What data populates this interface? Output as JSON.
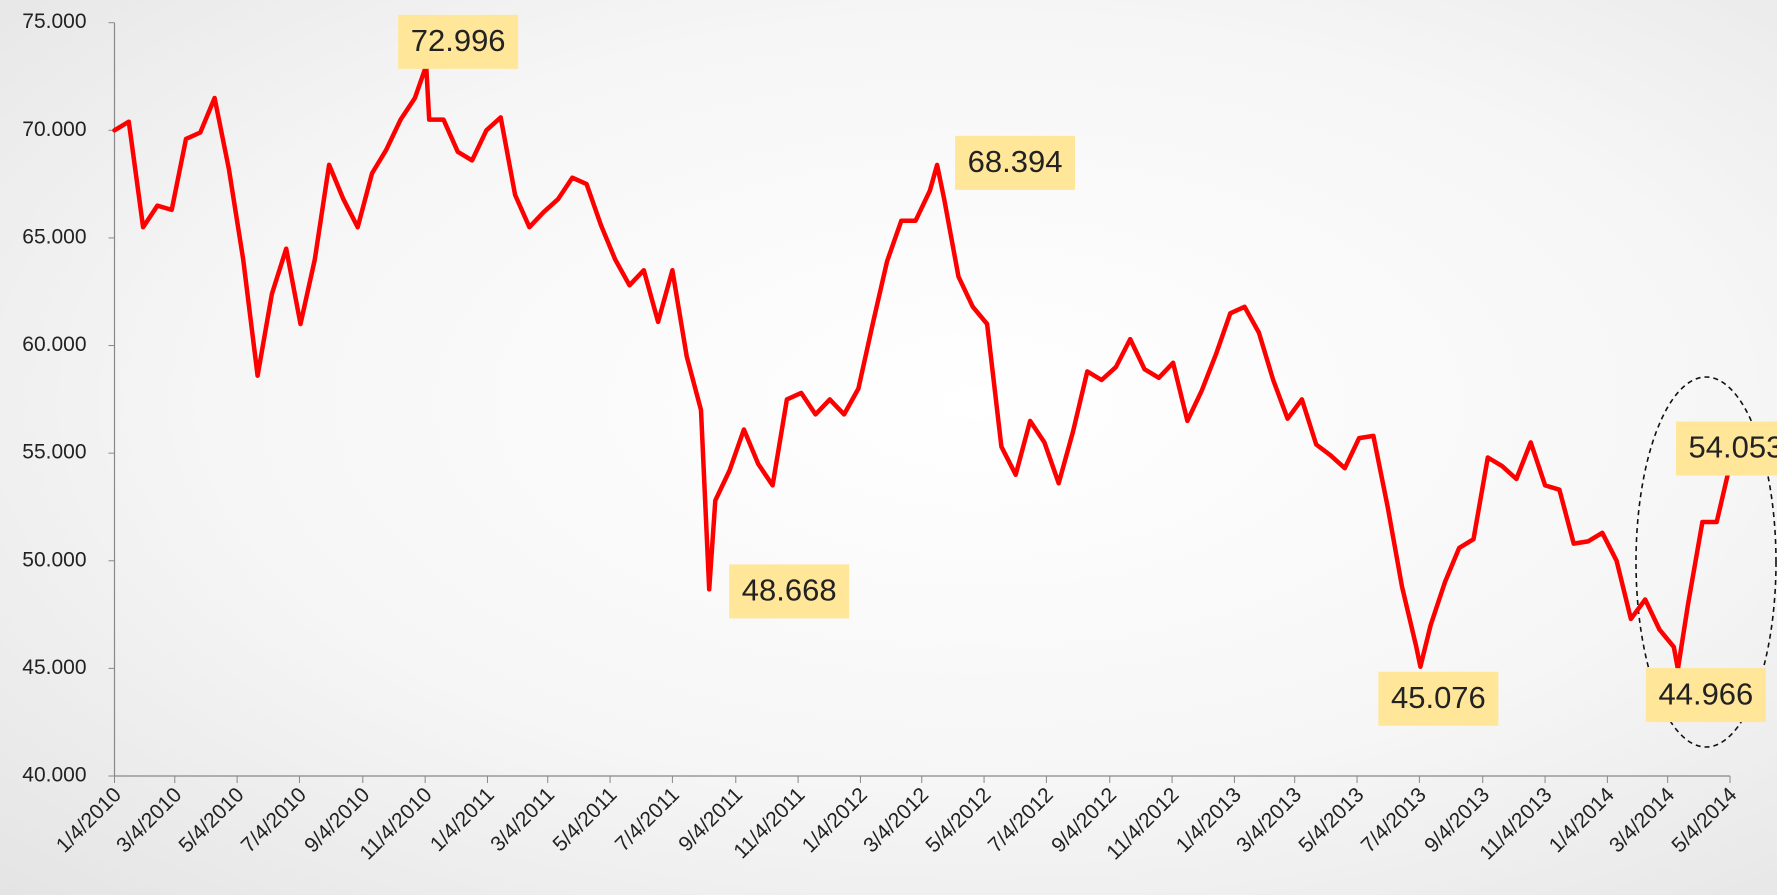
{
  "chart_data": {
    "type": "line",
    "color": "#ff0000",
    "x": [
      "1/4/2010",
      "1/18/2010",
      "2/1/2010",
      "2/15/2010",
      "3/1/2010",
      "3/15/2010",
      "3/29/2010",
      "4/12/2010",
      "4/26/2010",
      "5/10/2010",
      "5/24/2010",
      "6/7/2010",
      "6/21/2010",
      "7/5/2010",
      "7/19/2010",
      "8/2/2010",
      "8/16/2010",
      "8/30/2010",
      "9/13/2010",
      "9/27/2010",
      "10/11/2010",
      "10/25/2010",
      "11/5/2010",
      "11/8/2010",
      "11/22/2010",
      "12/6/2010",
      "12/20/2010",
      "1/3/2011",
      "1/17/2011",
      "1/31/2011",
      "2/14/2011",
      "2/28/2011",
      "3/14/2011",
      "3/28/2011",
      "4/11/2011",
      "4/25/2011",
      "5/9/2011",
      "5/23/2011",
      "6/6/2011",
      "6/20/2011",
      "7/4/2011",
      "7/18/2011",
      "8/1/2011",
      "8/9/2011",
      "8/15/2011",
      "8/29/2011",
      "9/12/2011",
      "9/26/2011",
      "10/10/2011",
      "10/24/2011",
      "11/7/2011",
      "11/21/2011",
      "12/5/2011",
      "12/19/2011",
      "1/2/2012",
      "1/16/2012",
      "1/30/2012",
      "2/13/2012",
      "2/27/2012",
      "3/12/2012",
      "3/19/2012",
      "3/26/2012",
      "4/9/2012",
      "4/23/2012",
      "5/7/2012",
      "5/21/2012",
      "6/4/2012",
      "6/18/2012",
      "7/2/2012",
      "7/16/2012",
      "7/30/2012",
      "8/13/2012",
      "8/27/2012",
      "9/10/2012",
      "9/24/2012",
      "10/8/2012",
      "10/22/2012",
      "11/5/2012",
      "11/19/2012",
      "12/3/2012",
      "12/17/2012",
      "12/31/2012",
      "1/14/2013",
      "1/28/2013",
      "2/11/2013",
      "2/25/2013",
      "3/11/2013",
      "3/25/2013",
      "4/8/2013",
      "4/22/2013",
      "5/6/2013",
      "5/20/2013",
      "6/3/2013",
      "6/17/2013",
      "7/1/2013",
      "7/5/2013",
      "7/15/2013",
      "7/29/2013",
      "8/12/2013",
      "8/26/2013",
      "9/9/2013",
      "9/23/2013",
      "10/7/2013",
      "10/21/2013",
      "11/4/2013",
      "11/18/2013",
      "12/2/2013",
      "12/16/2013",
      "12/30/2013",
      "1/13/2014",
      "1/27/2014",
      "2/10/2014",
      "2/24/2014",
      "3/10/2014",
      "3/14/2014",
      "3/24/2014",
      "4/7/2014",
      "4/21/2014",
      "5/2/2014"
    ],
    "values": [
      70.0,
      70.4,
      65.5,
      66.5,
      66.3,
      69.6,
      69.9,
      71.5,
      68.2,
      64.0,
      58.6,
      62.4,
      64.5,
      61.0,
      64.0,
      68.4,
      66.8,
      65.5,
      68.0,
      69.1,
      70.5,
      71.5,
      72.996,
      70.5,
      70.5,
      69.0,
      68.6,
      70.0,
      70.6,
      67.0,
      65.5,
      66.2,
      66.8,
      67.8,
      67.5,
      65.6,
      64.0,
      62.8,
      63.5,
      61.1,
      63.5,
      59.5,
      57.0,
      48.668,
      52.8,
      54.2,
      56.1,
      54.5,
      53.5,
      57.5,
      57.8,
      56.8,
      57.5,
      56.8,
      58.0,
      61.0,
      63.9,
      65.8,
      65.8,
      67.2,
      68.394,
      66.8,
      63.2,
      61.8,
      61.0,
      55.3,
      54.0,
      56.5,
      55.5,
      53.6,
      56.0,
      58.8,
      58.4,
      59.0,
      60.3,
      58.9,
      58.5,
      59.2,
      56.5,
      57.9,
      59.6,
      61.5,
      61.8,
      60.6,
      58.4,
      56.6,
      57.5,
      55.4,
      54.9,
      54.3,
      55.7,
      55.8,
      52.5,
      48.8,
      46.0,
      45.076,
      47.0,
      49.0,
      50.6,
      51.0,
      54.8,
      54.4,
      53.8,
      55.5,
      53.5,
      53.3,
      50.8,
      50.9,
      51.3,
      50.0,
      47.3,
      48.2,
      46.8,
      46.0,
      44.966,
      48.0,
      51.8,
      51.8,
      54.053
    ],
    "xlim": [
      "1/4/2010",
      "5/4/2014"
    ],
    "xticks": [
      "1/4/2010",
      "3/4/2010",
      "5/4/2010",
      "7/4/2010",
      "9/4/2010",
      "11/4/2010",
      "1/4/2011",
      "3/4/2011",
      "5/4/2011",
      "7/4/2011",
      "9/4/2011",
      "11/4/2011",
      "1/4/2012",
      "3/4/2012",
      "5/4/2012",
      "7/4/2012",
      "9/4/2012",
      "11/4/2012",
      "1/4/2013",
      "3/4/2013",
      "5/4/2013",
      "7/4/2013",
      "9/4/2013",
      "11/4/2013",
      "1/4/2014",
      "3/4/2014",
      "5/4/2014"
    ],
    "ylim": [
      40,
      75
    ],
    "yticks": [
      {
        "value": 40,
        "label": "40.000"
      },
      {
        "value": 45,
        "label": "45.000"
      },
      {
        "value": 50,
        "label": "50.000"
      },
      {
        "value": 55,
        "label": "55.000"
      },
      {
        "value": 60,
        "label": "60.000"
      },
      {
        "value": 65,
        "label": "65.000"
      },
      {
        "value": 70,
        "label": "70.000"
      },
      {
        "value": 75,
        "label": "75.000"
      }
    ],
    "grid": false,
    "annotations": [
      {
        "x": "11/5/2010",
        "value": 72.996
      },
      {
        "x": "8/9/2011",
        "value": 48.668
      },
      {
        "x": "3/19/2012",
        "value": 68.394
      },
      {
        "x": "7/5/2013",
        "value": 45.076
      },
      {
        "x": "3/14/2014",
        "value": 44.966
      },
      {
        "x": "5/2/2014",
        "value": 54.053
      }
    ]
  }
}
